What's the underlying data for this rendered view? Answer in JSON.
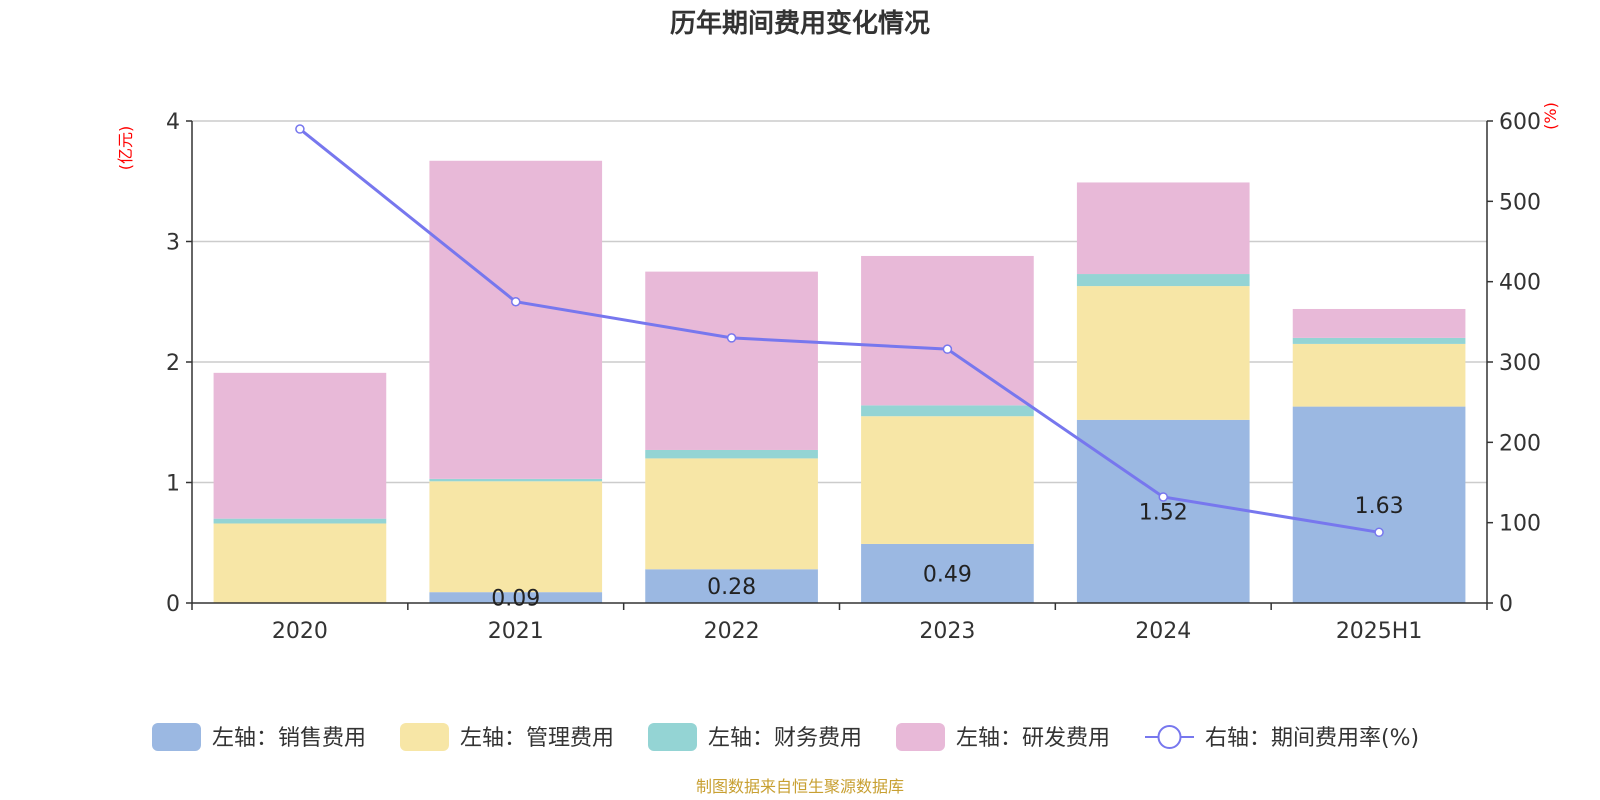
{
  "title": "历年期间费用变化情况",
  "source": "制图数据来自恒生聚源数据库",
  "chart_data": {
    "type": "bar",
    "stacked": true,
    "categories": [
      "2020",
      "2021",
      "2022",
      "2023",
      "2024",
      "2025H1"
    ],
    "left_axis": {
      "unit": "(亿元)",
      "ticks": [
        "0",
        "1",
        "2",
        "3",
        "4"
      ],
      "ylim": [
        0,
        4
      ]
    },
    "right_axis": {
      "unit": "(%)",
      "ticks": [
        "0",
        "100",
        "200",
        "300",
        "400",
        "500",
        "600"
      ],
      "ylim": [
        0,
        600
      ]
    },
    "grid": true,
    "legend_position": "bottom",
    "series": [
      {
        "name": "左轴：销售费用",
        "axis": "left",
        "kind": "bar",
        "color": "#9bb8e2",
        "values": [
          0.0,
          0.09,
          0.28,
          0.49,
          1.52,
          1.63
        ],
        "labels": [
          "",
          "0.09",
          "0.28",
          "0.49",
          "1.52",
          "1.63"
        ]
      },
      {
        "name": "左轴：管理费用",
        "axis": "left",
        "kind": "bar",
        "color": "#f7e6a6",
        "values": [
          0.66,
          0.92,
          0.92,
          1.06,
          1.11,
          0.52
        ]
      },
      {
        "name": "左轴：财务费用",
        "axis": "left",
        "kind": "bar",
        "color": "#94d4d4",
        "values": [
          0.04,
          0.02,
          0.07,
          0.09,
          0.1,
          0.05
        ]
      },
      {
        "name": "左轴：研发费用",
        "axis": "left",
        "kind": "bar",
        "color": "#e8b9d8",
        "values": [
          1.21,
          2.64,
          1.48,
          1.24,
          0.76,
          0.24
        ]
      },
      {
        "name": "右轴：期间费用率(%)",
        "axis": "right",
        "kind": "line",
        "color": "#7777ee",
        "values": [
          590,
          375,
          330,
          316,
          132,
          88
        ]
      }
    ]
  }
}
